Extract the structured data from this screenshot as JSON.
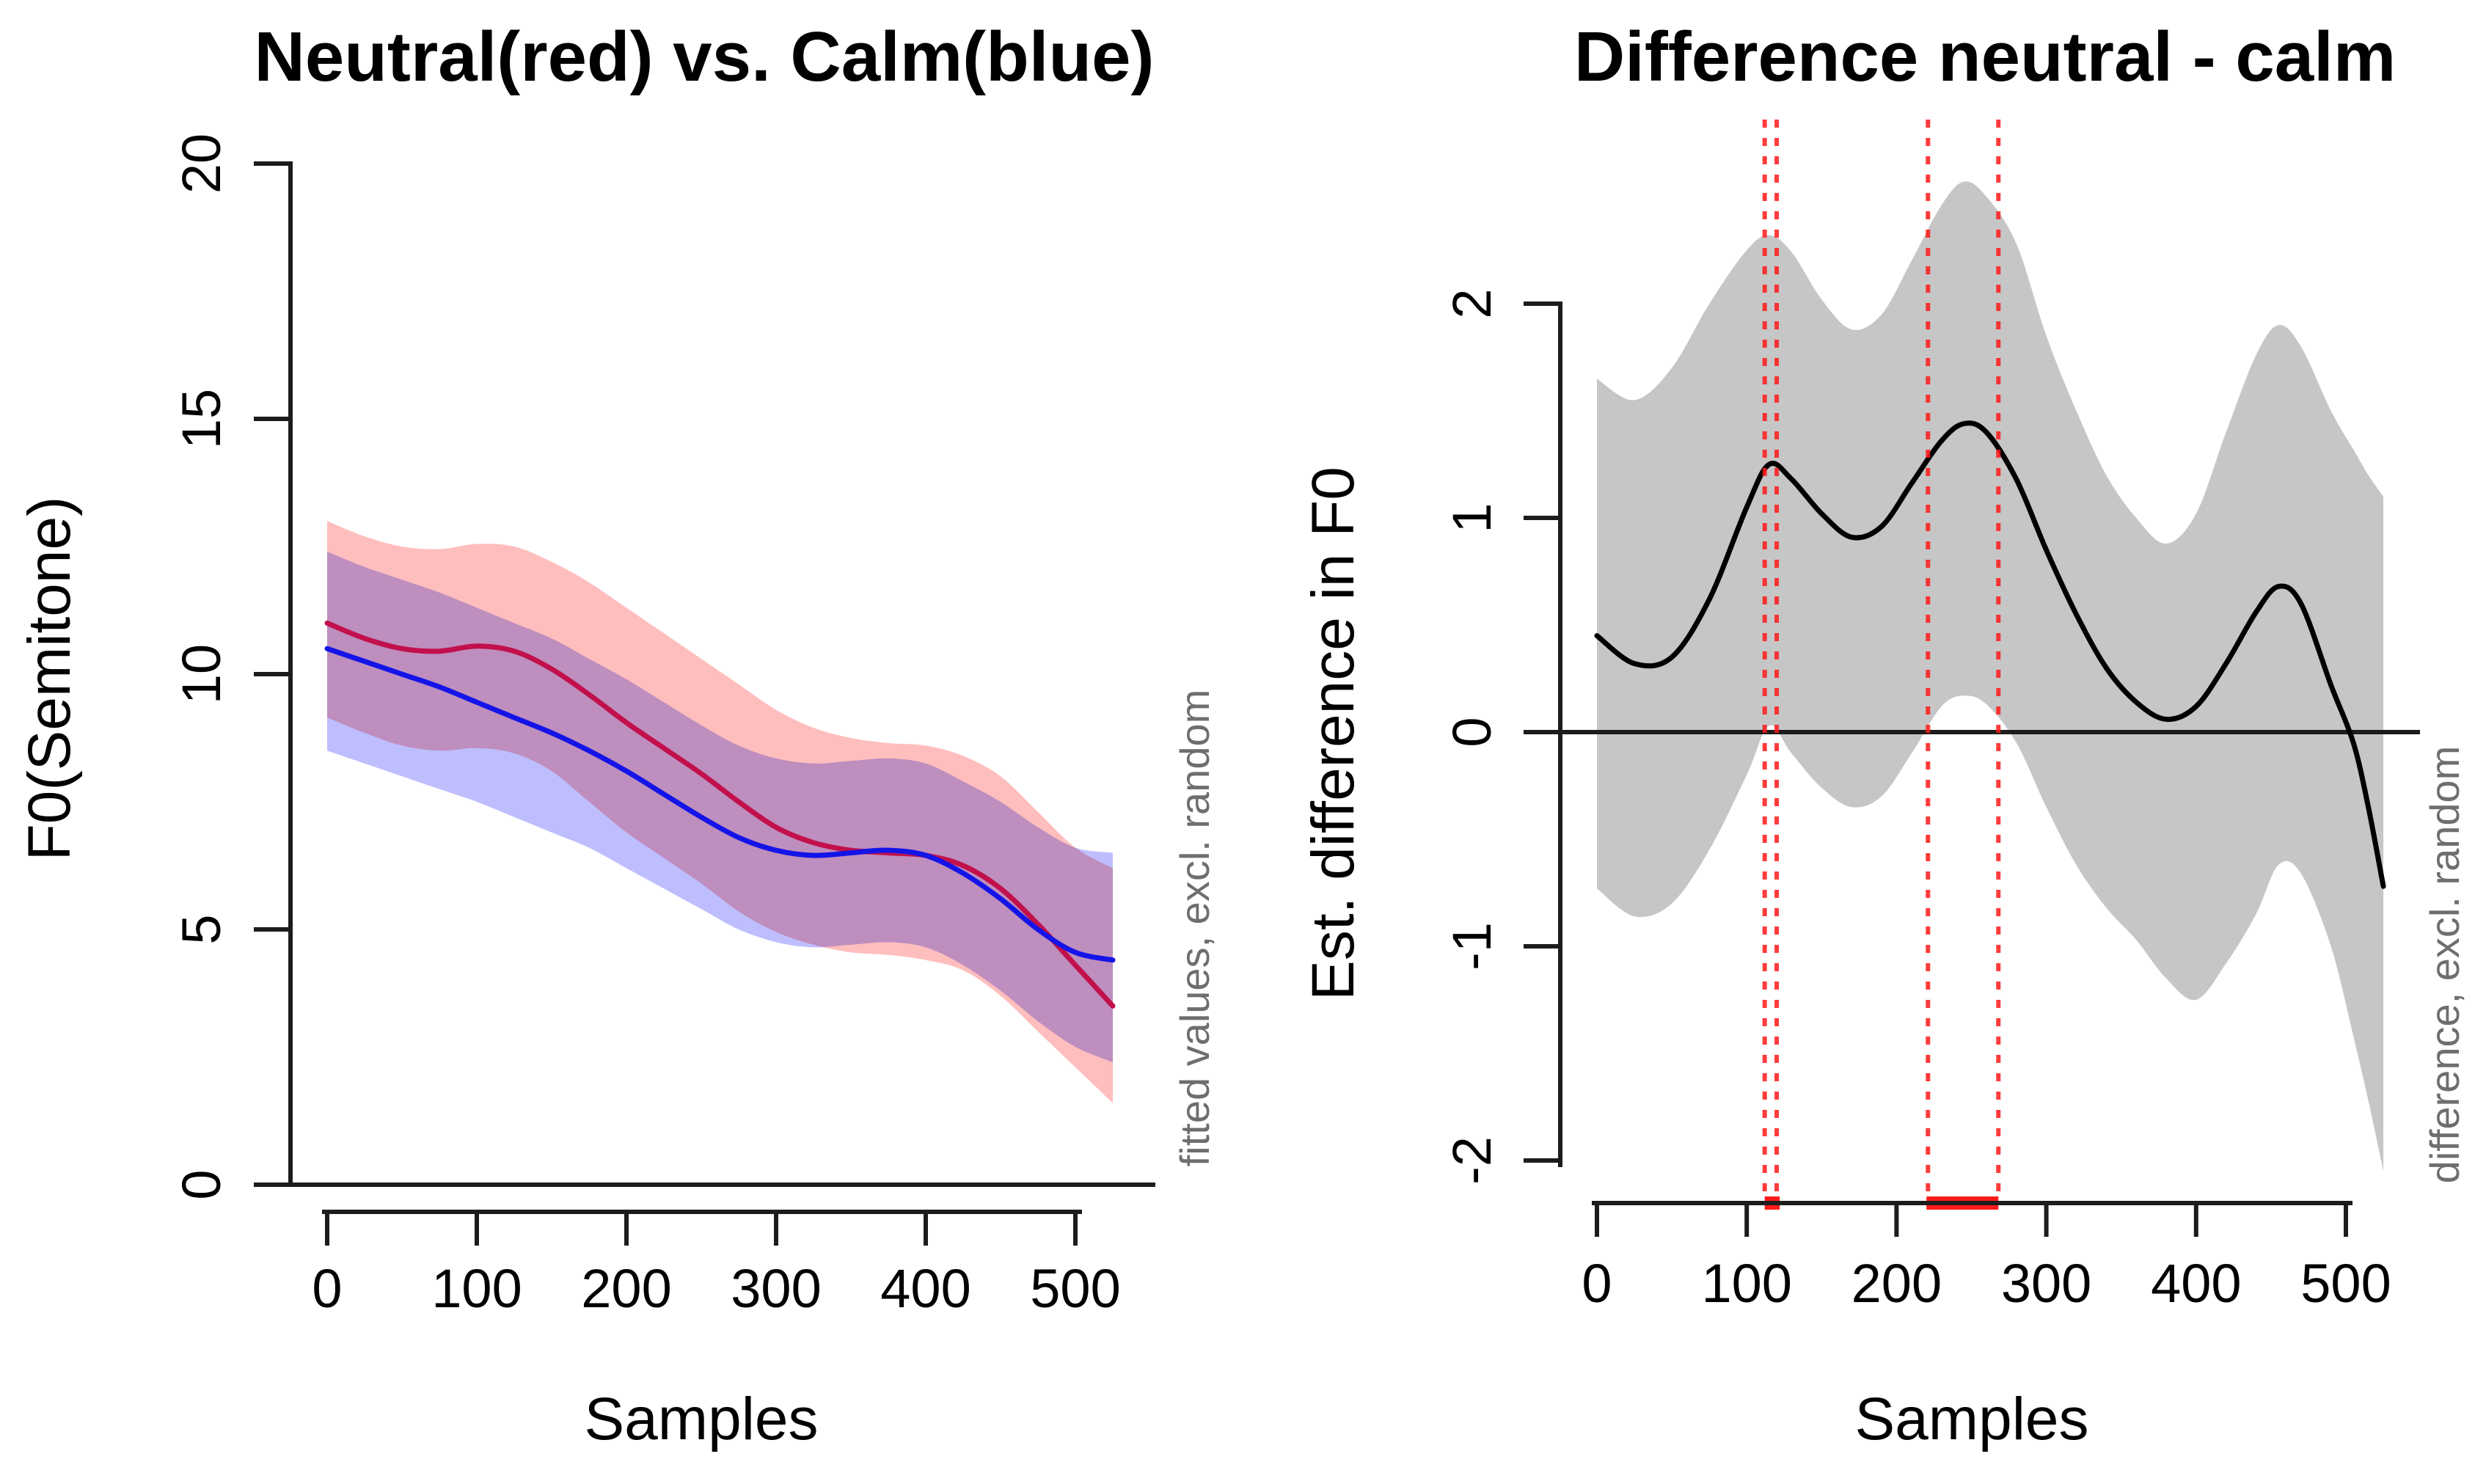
{
  "figure": {
    "background": "#ffffff",
    "axis_color": "#1c1c1c",
    "note_color": "#6e6e6e"
  },
  "chart_data": [
    {
      "type": "line",
      "panel": "left",
      "title": "Neutral(red) vs. Calm(blue)",
      "xlabel": "Samples",
      "ylabel": "F0(Semitone)",
      "side_note": "fitted values, excl. random",
      "x_ticks": [
        0,
        100,
        200,
        300,
        400,
        500
      ],
      "y_ticks": [
        0,
        5,
        10,
        15,
        20
      ],
      "xlim": [
        0,
        525
      ],
      "ylim": [
        0,
        20
      ],
      "grid": false,
      "legend": "none (colors named in title)",
      "series": [
        {
          "name": "Neutral",
          "color": "#c2104c",
          "band_color": "#ffbebe",
          "x": [
            0,
            25,
            50,
            75,
            100,
            125,
            150,
            175,
            200,
            225,
            250,
            275,
            300,
            325,
            350,
            375,
            400,
            425,
            450,
            475,
            500,
            525
          ],
          "y": [
            11.0,
            10.7,
            10.5,
            10.45,
            10.55,
            10.45,
            10.1,
            9.6,
            9.05,
            8.55,
            8.05,
            7.5,
            7.0,
            6.7,
            6.55,
            6.5,
            6.45,
            6.25,
            5.8,
            5.1,
            4.3,
            3.5
          ],
          "band_upper": [
            13.0,
            12.7,
            12.5,
            12.45,
            12.55,
            12.5,
            12.2,
            11.8,
            11.3,
            10.8,
            10.3,
            9.8,
            9.3,
            8.95,
            8.75,
            8.65,
            8.6,
            8.4,
            8.0,
            7.3,
            6.6,
            6.2
          ],
          "band_lower": [
            9.15,
            8.85,
            8.6,
            8.5,
            8.55,
            8.45,
            8.1,
            7.5,
            6.9,
            6.4,
            5.9,
            5.35,
            4.95,
            4.7,
            4.55,
            4.5,
            4.4,
            4.2,
            3.7,
            3.0,
            2.3,
            1.6
          ]
        },
        {
          "name": "Calm",
          "color": "#1414e8",
          "band_color": "#bebeff",
          "x": [
            0,
            25,
            50,
            75,
            100,
            125,
            150,
            175,
            200,
            225,
            250,
            275,
            300,
            325,
            350,
            375,
            400,
            425,
            450,
            475,
            500,
            525
          ],
          "y": [
            10.5,
            10.25,
            10.0,
            9.75,
            9.45,
            9.15,
            8.85,
            8.5,
            8.1,
            7.65,
            7.2,
            6.8,
            6.55,
            6.45,
            6.5,
            6.55,
            6.45,
            6.1,
            5.6,
            5.0,
            4.55,
            4.4
          ],
          "band_upper": [
            12.4,
            12.1,
            11.85,
            11.6,
            11.3,
            11.0,
            10.7,
            10.3,
            9.9,
            9.45,
            9.0,
            8.6,
            8.35,
            8.25,
            8.3,
            8.35,
            8.25,
            7.9,
            7.5,
            7.0,
            6.6,
            6.5
          ],
          "band_lower": [
            8.5,
            8.25,
            8.0,
            7.75,
            7.5,
            7.2,
            6.9,
            6.6,
            6.2,
            5.8,
            5.4,
            5.0,
            4.75,
            4.65,
            4.7,
            4.75,
            4.65,
            4.3,
            3.8,
            3.2,
            2.7,
            2.4
          ]
        }
      ]
    },
    {
      "type": "line",
      "panel": "right",
      "title": "Difference neutral - calm",
      "xlabel": "Samples",
      "ylabel": "Est. difference in F0",
      "side_note": "difference, excl. random",
      "x_ticks": [
        0,
        100,
        200,
        300,
        400,
        500
      ],
      "y_ticks": [
        -2,
        -1,
        0,
        1,
        2
      ],
      "xlim": [
        0,
        525
      ],
      "ylim": [
        -2.2,
        2.85
      ],
      "grid": false,
      "zero_line": 0,
      "sig_line_x": [
        112,
        120,
        221,
        268
      ],
      "sig_segments": [
        [
          112,
          122
        ],
        [
          220,
          268
        ]
      ],
      "sig_color": "#ff1a1a",
      "series": [
        {
          "name": "difference",
          "color": "#000000",
          "band_color": "#c6c6c6",
          "x": [
            0,
            25,
            50,
            75,
            100,
            115,
            130,
            150,
            170,
            190,
            210,
            230,
            245,
            260,
            280,
            300,
            320,
            340,
            360,
            380,
            400,
            420,
            440,
            455,
            470,
            490,
            505,
            515,
            525
          ],
          "y": [
            0.45,
            0.32,
            0.35,
            0.62,
            1.05,
            1.25,
            1.18,
            1.02,
            0.91,
            0.96,
            1.16,
            1.36,
            1.44,
            1.4,
            1.18,
            0.85,
            0.55,
            0.3,
            0.14,
            0.06,
            0.12,
            0.32,
            0.56,
            0.68,
            0.6,
            0.22,
            -0.05,
            -0.35,
            -0.72
          ],
          "band_upper": [
            1.65,
            1.55,
            1.7,
            2.0,
            2.25,
            2.32,
            2.24,
            2.02,
            1.88,
            1.95,
            2.2,
            2.46,
            2.57,
            2.5,
            2.28,
            1.85,
            1.5,
            1.2,
            1.0,
            0.88,
            1.02,
            1.4,
            1.76,
            1.9,
            1.8,
            1.5,
            1.32,
            1.2,
            1.1
          ],
          "band_lower": [
            -0.73,
            -0.86,
            -0.8,
            -0.55,
            -0.2,
            0.03,
            -0.1,
            -0.26,
            -0.35,
            -0.3,
            -0.1,
            0.12,
            0.17,
            0.13,
            -0.05,
            -0.35,
            -0.62,
            -0.82,
            -0.97,
            -1.15,
            -1.25,
            -1.08,
            -0.85,
            -0.62,
            -0.66,
            -1.0,
            -1.42,
            -1.72,
            -2.05
          ]
        }
      ]
    }
  ]
}
